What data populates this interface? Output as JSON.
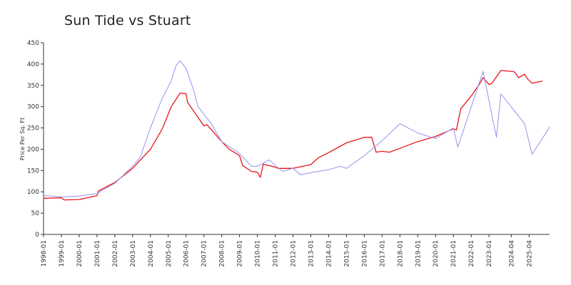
{
  "chart_data": {
    "type": "line",
    "title": "Sun Tide vs Stuart",
    "xlabel": "",
    "ylabel": "Price Per Sq. Ft",
    "ylim": [
      0,
      450
    ],
    "yticks": [
      0,
      50,
      100,
      150,
      200,
      250,
      300,
      350,
      400,
      450
    ],
    "xtick_labels": [
      "1998-01",
      "1999-01",
      "2000-01",
      "2001-01",
      "2002-01",
      "2003-01",
      "2004-01",
      "2005-01",
      "2006-01",
      "2007-01",
      "2008-01",
      "2009-01",
      "2010-01",
      "2011-01",
      "2012-01",
      "2013-01",
      "2014-01",
      "2015-01",
      "2016-01",
      "2017-01",
      "2018-01",
      "2019-01",
      "2020-01",
      "2021-01",
      "2022-01",
      "2023-01",
      "2024-04",
      "2025-04"
    ],
    "grid": false,
    "legend": "none",
    "series": [
      {
        "color": "#e8141b",
        "points": [
          [
            "1998-01",
            85
          ],
          [
            "1999-01",
            86
          ],
          [
            "1999-03",
            81
          ],
          [
            "2000-01",
            82
          ],
          [
            "2000-09",
            88
          ],
          [
            "2001-01",
            91
          ],
          [
            "2001-02",
            102
          ],
          [
            "2002-01",
            122
          ],
          [
            "2003-01",
            155
          ],
          [
            "2004-01",
            200
          ],
          [
            "2004-09",
            248
          ],
          [
            "2005-03",
            300
          ],
          [
            "2005-09",
            332
          ],
          [
            "2006-01",
            330
          ],
          [
            "2006-02",
            310
          ],
          [
            "2007-01",
            255
          ],
          [
            "2007-03",
            258
          ],
          [
            "2008-01",
            218
          ],
          [
            "2008-06",
            200
          ],
          [
            "2009-01",
            185
          ],
          [
            "2009-03",
            162
          ],
          [
            "2009-09",
            148
          ],
          [
            "2010-01",
            146
          ],
          [
            "2010-03",
            134
          ],
          [
            "2010-05",
            165
          ],
          [
            "2011-01",
            158
          ],
          [
            "2011-03",
            155
          ],
          [
            "2012-01",
            155
          ],
          [
            "2013-01",
            164
          ],
          [
            "2013-06",
            180
          ],
          [
            "2014-01",
            192
          ],
          [
            "2015-01",
            215
          ],
          [
            "2016-01",
            228
          ],
          [
            "2016-06",
            228
          ],
          [
            "2016-09",
            193
          ],
          [
            "2017-01",
            195
          ],
          [
            "2017-06",
            193
          ],
          [
            "2018-01",
            202
          ],
          [
            "2019-01",
            218
          ],
          [
            "2020-01",
            230
          ],
          [
            "2021-01",
            248
          ],
          [
            "2021-03",
            245
          ],
          [
            "2021-06",
            295
          ],
          [
            "2022-01",
            325
          ],
          [
            "2022-06",
            350
          ],
          [
            "2022-09",
            368
          ],
          [
            "2023-01",
            352
          ],
          [
            "2023-03",
            355
          ],
          [
            "2023-09",
            385
          ],
          [
            "2024-06",
            382
          ],
          [
            "2024-09",
            368
          ],
          [
            "2025-01",
            376
          ],
          [
            "2025-03",
            365
          ],
          [
            "2025-06",
            355
          ],
          [
            "2026-01",
            360
          ]
        ]
      },
      {
        "color": "#9b9bef",
        "points": [
          [
            "1998-01",
            92
          ],
          [
            "1999-01",
            88
          ],
          [
            "2000-01",
            90
          ],
          [
            "2001-01",
            96
          ],
          [
            "2002-01",
            120
          ],
          [
            "2003-01",
            160
          ],
          [
            "2003-06",
            180
          ],
          [
            "2004-01",
            250
          ],
          [
            "2004-09",
            320
          ],
          [
            "2005-03",
            360
          ],
          [
            "2005-06",
            395
          ],
          [
            "2005-09",
            408
          ],
          [
            "2006-01",
            390
          ],
          [
            "2006-06",
            340
          ],
          [
            "2006-09",
            300
          ],
          [
            "2007-06",
            260
          ],
          [
            "2008-01",
            218
          ],
          [
            "2009-01",
            190
          ],
          [
            "2009-09",
            160
          ],
          [
            "2010-01",
            160
          ],
          [
            "2010-09",
            175
          ],
          [
            "2011-01",
            162
          ],
          [
            "2011-06",
            148
          ],
          [
            "2012-01",
            155
          ],
          [
            "2012-06",
            140
          ],
          [
            "2013-01",
            145
          ],
          [
            "2014-01",
            152
          ],
          [
            "2014-09",
            160
          ],
          [
            "2015-01",
            155
          ],
          [
            "2016-01",
            185
          ],
          [
            "2017-01",
            220
          ],
          [
            "2018-01",
            260
          ],
          [
            "2019-01",
            238
          ],
          [
            "2020-01",
            225
          ],
          [
            "2021-01",
            250
          ],
          [
            "2021-04",
            205
          ],
          [
            "2022-09",
            383
          ],
          [
            "2023-06",
            228
          ],
          [
            "2023-09",
            330
          ],
          [
            "2025-01",
            260
          ],
          [
            "2025-06",
            188
          ],
          [
            "2026-06",
            253
          ]
        ]
      }
    ]
  }
}
